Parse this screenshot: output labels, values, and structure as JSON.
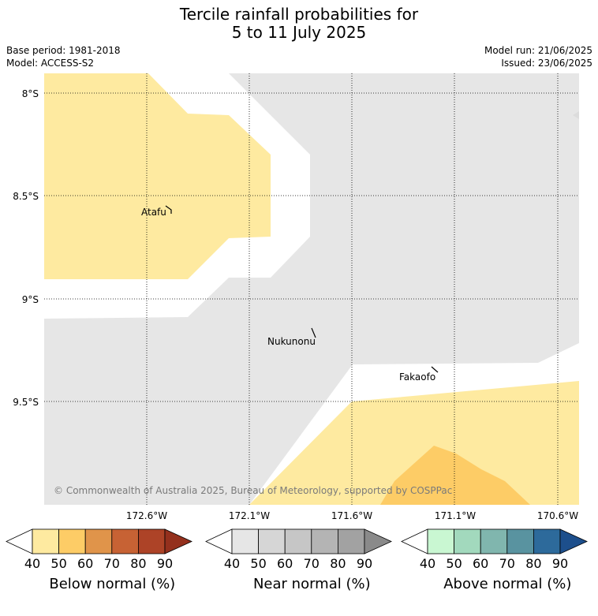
{
  "title": {
    "line1": "Tercile rainfall probabilities for",
    "line2": "5 to 11 July 2025"
  },
  "info": {
    "base_period": "Base period: 1981-2018",
    "model": "Model: ACCESS-S2",
    "model_run": "Model run: 21/06/2025",
    "issued": "Issued: 23/06/2025"
  },
  "map": {
    "lat_labels": [
      "8°S",
      "8.5°S",
      "9°S",
      "9.5°S"
    ],
    "lon_labels": [
      "172.6°W",
      "172.1°W",
      "171.6°W",
      "171.1°W",
      "170.6°W"
    ],
    "places": [
      "Atafu",
      "Nukunonu",
      "Fakaofo"
    ],
    "copyright": "© Commonwealth of Australia 2025, Bureau of Meteorology, supported by COSPPac"
  },
  "colorbars": [
    {
      "title": "Below normal (%)",
      "ticks": [
        "40",
        "50",
        "60",
        "70",
        "80",
        "90"
      ],
      "colors": [
        "#feeaa0",
        "#fdcc66",
        "#e0944a",
        "#c76234",
        "#ad4327",
        "#94301d"
      ]
    },
    {
      "title": "Near normal (%)",
      "ticks": [
        "40",
        "50",
        "60",
        "70",
        "80",
        "90"
      ],
      "colors": [
        "#e6e6e6",
        "#d6d6d6",
        "#c6c6c6",
        "#b4b4b4",
        "#a2a2a2",
        "#8a8a8a"
      ]
    },
    {
      "title": "Above normal (%)",
      "ticks": [
        "40",
        "50",
        "60",
        "70",
        "80",
        "90"
      ],
      "colors": [
        "#c9f7d2",
        "#a2d9bd",
        "#80b6ae",
        "#5993a0",
        "#2d6a9b",
        "#1d4f8c"
      ]
    }
  ],
  "colors": {
    "below_40": "#feeaa0",
    "below_50": "#fdcc66",
    "near_40": "#e6e6e6",
    "background": "#ffffff"
  }
}
